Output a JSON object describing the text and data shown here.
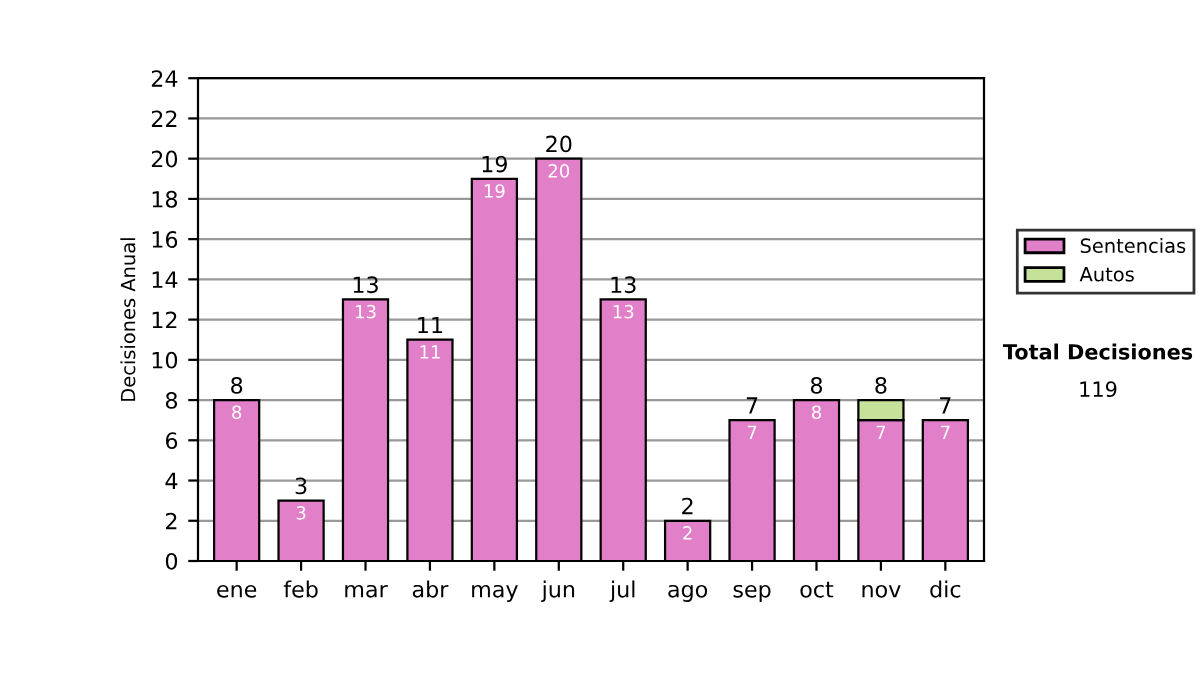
{
  "chart_data": {
    "type": "bar",
    "stacked": true,
    "ylabel": "Decisiones Anual",
    "categories": [
      "ene",
      "feb",
      "mar",
      "abr",
      "may",
      "jun",
      "jul",
      "ago",
      "sep",
      "oct",
      "nov",
      "dic"
    ],
    "series": [
      {
        "name": "Sentencias",
        "color": "#e27fc9",
        "values": [
          8,
          3,
          13,
          11,
          19,
          20,
          13,
          2,
          7,
          8,
          7,
          7
        ],
        "value_labels": [
          "8",
          "3",
          "13",
          "11",
          "19",
          "20",
          "13",
          "2",
          "7",
          "8",
          "7",
          "7"
        ]
      },
      {
        "name": "Autos",
        "color": "#c6e29a",
        "values": [
          null,
          null,
          null,
          null,
          null,
          null,
          null,
          null,
          null,
          null,
          1,
          null
        ]
      }
    ],
    "totals": [
      "8",
      "3",
      "13",
      "11",
      "19",
      "20",
      "13",
      "2",
      "7",
      "8",
      "8",
      "7"
    ],
    "ylim": [
      0,
      24
    ],
    "yticks": [
      0,
      2,
      4,
      6,
      8,
      10,
      12,
      14,
      16,
      18,
      20,
      22,
      24
    ],
    "grid": "y",
    "legend": "right",
    "annotations": [
      "Total Decisiones",
      "119"
    ]
  }
}
